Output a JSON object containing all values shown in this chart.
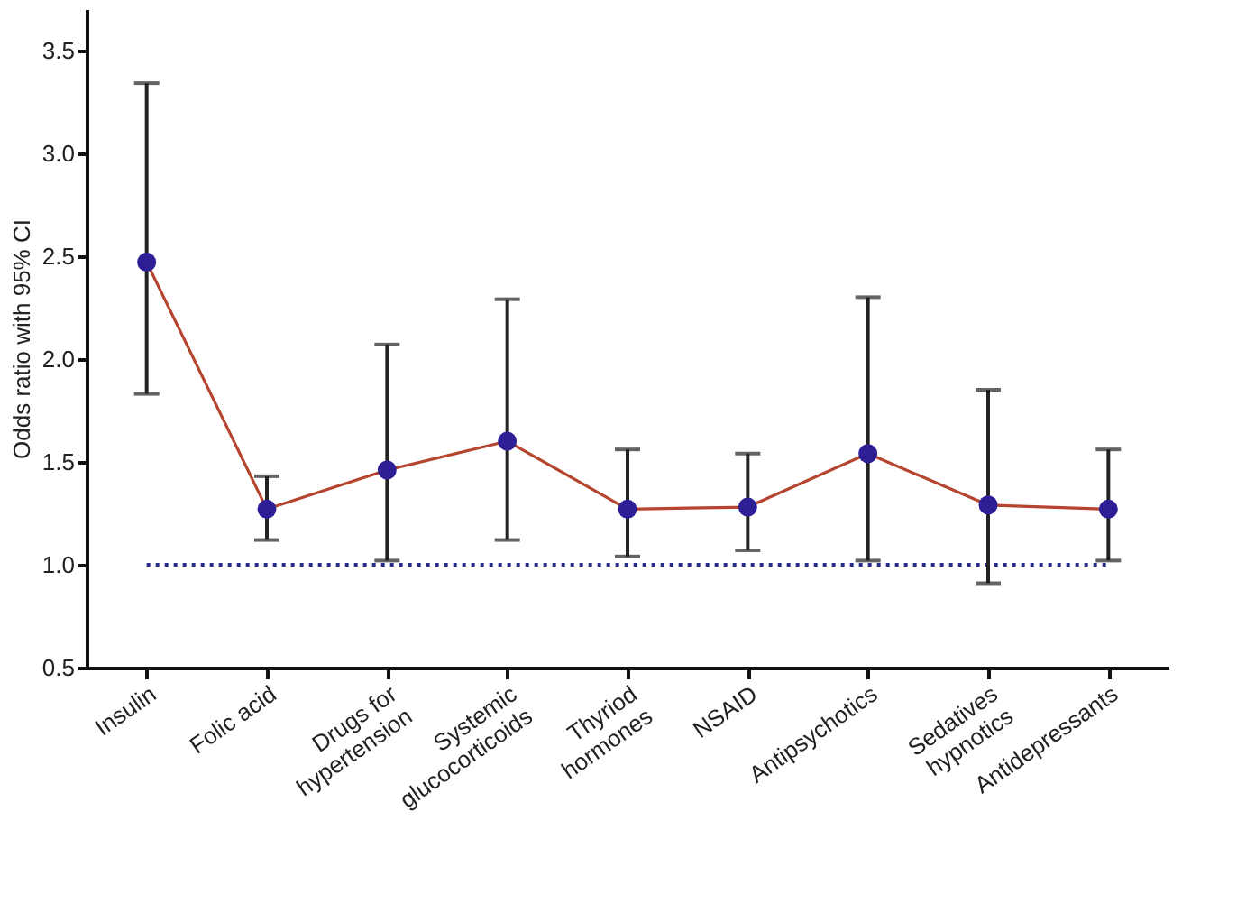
{
  "chart_data": {
    "type": "line",
    "ylabel": "Odds ratio with 95% CI",
    "categories": [
      "Insulin",
      "Folic acid",
      "Drugs for\nhypertension",
      "Systemic\nglucocorticoids",
      "Thyriod\nhormones",
      "NSAID",
      "Antipsychotics",
      "Sedatives\nhypnotics",
      "Antidepressants"
    ],
    "series": [
      {
        "color": "#b5452f",
        "values": [
          2.47,
          1.27,
          1.46,
          1.6,
          1.27,
          1.28,
          1.54,
          1.29,
          1.27
        ],
        "errors": [
          [
            1.83,
            3.34
          ],
          [
            1.12,
            1.43
          ],
          [
            1.02,
            2.07
          ],
          [
            1.12,
            2.29
          ],
          [
            1.04,
            1.56
          ],
          [
            1.07,
            1.54
          ],
          [
            1.02,
            2.3
          ],
          [
            0.91,
            1.85
          ],
          [
            1.02,
            1.56
          ]
        ]
      }
    ],
    "marker": "circle",
    "ylim": [
      0.5,
      3.7
    ],
    "yticks": [
      0.5,
      {
        "value": 1,
        "label": "1.0"
      },
      1.5,
      {
        "value": 2,
        "label": "2.0"
      },
      2.5,
      {
        "value": 3,
        "label": "3.0"
      },
      3.5
    ],
    "ref_lines": [
      {
        "axis": "y",
        "value": 1.0,
        "color": "#2a2a8a",
        "line_style": "dotted"
      }
    ],
    "grid": false
  }
}
